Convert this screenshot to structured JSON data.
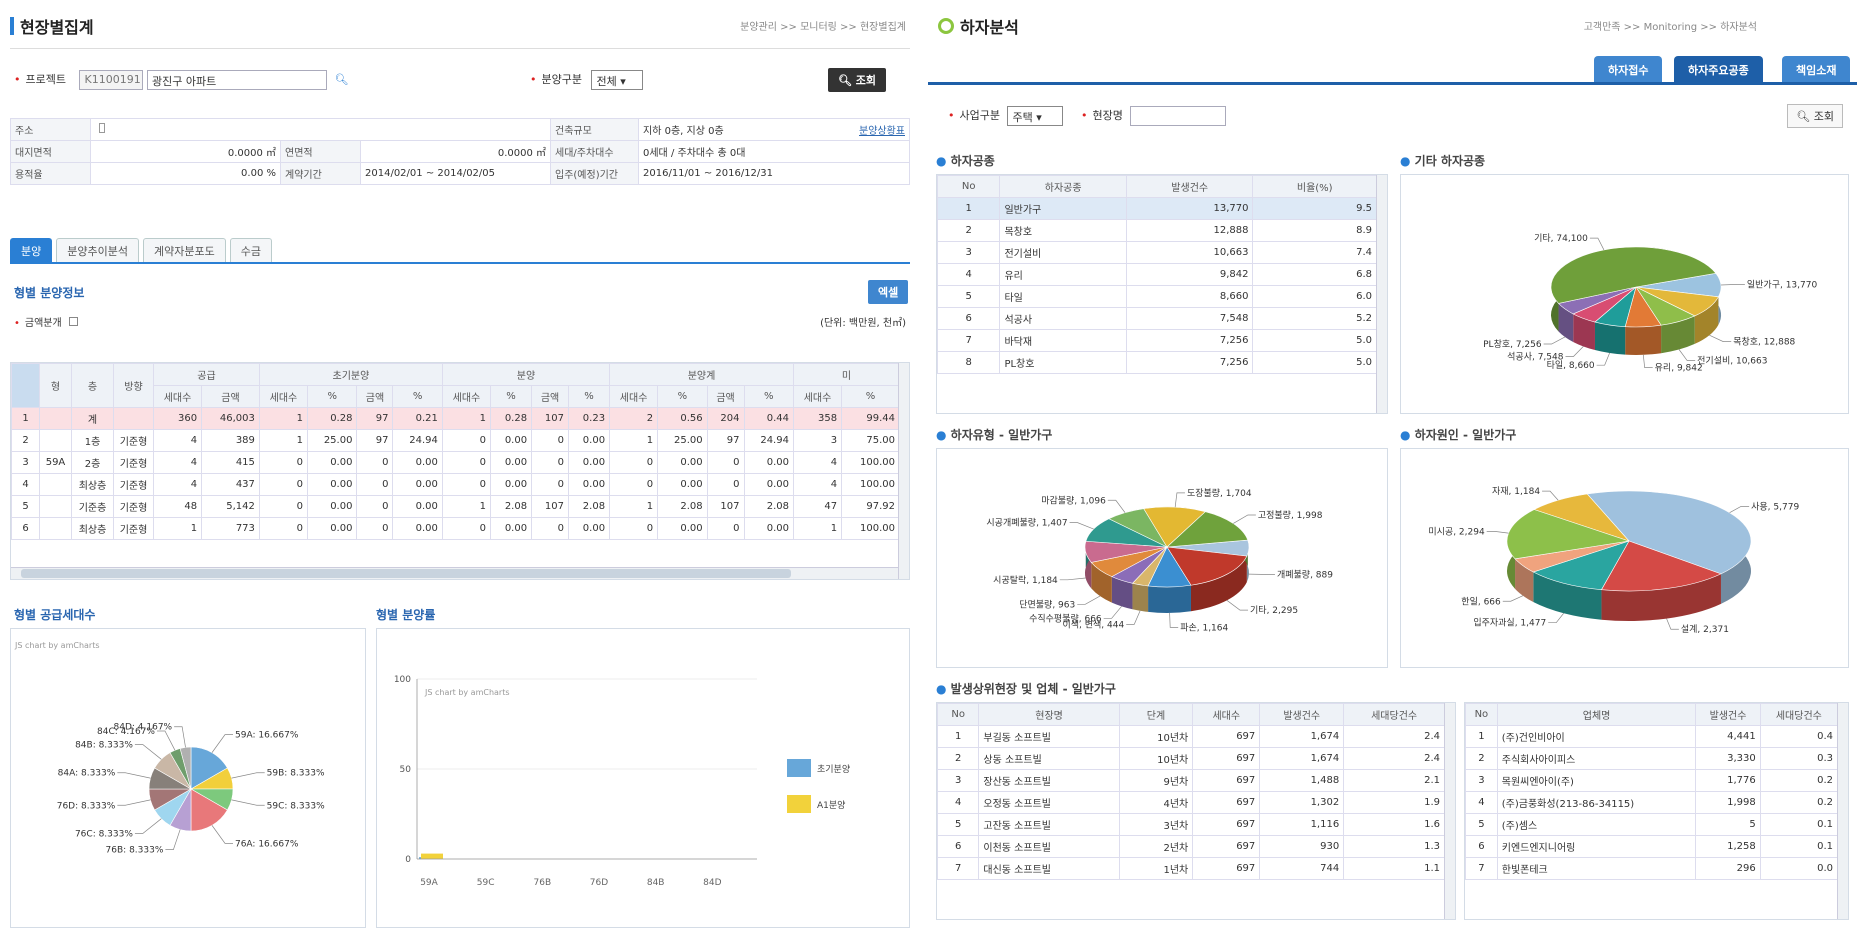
{
  "left": {
    "title": "현장별집계",
    "breadcrumb": "분양관리 >> 모니터링 >> 현장별집계",
    "search": {
      "project_label": "프로젝트",
      "project_code": "K1100191",
      "project_name": "광진구 아파트",
      "type_label": "분양구분",
      "type_value": "전체",
      "search_btn": "조회"
    },
    "info": {
      "addr_label": "주소",
      "addr_value": "",
      "scale_label": "건축규모",
      "scale_value": "지하 0층, 지상 0층",
      "scale_link": "분양상황표",
      "land_label": "대지면적",
      "land_value": "0.0000 ㎡",
      "floor_label": "연면적",
      "floor_value": "0.0000 ㎡",
      "units_label": "세대/주차대수",
      "units_value": "0세대 / 주차대수 총 0대",
      "ratio_label": "용적율",
      "ratio_value": "0.00 %",
      "contract_label": "계약기간",
      "contract_value": "2014/02/01 ~ 2014/02/05",
      "move_label": "입주(예정)기간",
      "move_value": "2016/11/01 ~ 2016/12/31"
    },
    "tabs": [
      "분양",
      "분양추이분석",
      "계약자분포도",
      "수금"
    ],
    "sect_title": "형별 분양정보",
    "excel_btn": "엑셀",
    "amount_sep": "금액분개",
    "unit": "(단위: 백만원, 천㎡)",
    "grid_groups": [
      "공급",
      "초기분양",
      "분양",
      "분양계",
      "미"
    ],
    "grid_head": [
      "형",
      "층",
      "방향",
      "세대수",
      "금액",
      "세대수",
      "%",
      "금액",
      "%",
      "세대수",
      "%",
      "금액",
      "%",
      "세대수",
      "%",
      "금액",
      "%",
      "세대수",
      "%"
    ],
    "grid_rows": [
      [
        "1",
        "",
        "계",
        "",
        "360",
        "46,003",
        "1",
        "0.28",
        "97",
        "0.21",
        "1",
        "0.28",
        "107",
        "0.23",
        "2",
        "0.56",
        "204",
        "0.44",
        "358",
        "99.44"
      ],
      [
        "2",
        "",
        "1층",
        "기준형",
        "4",
        "389",
        "1",
        "25.00",
        "97",
        "24.94",
        "0",
        "0.00",
        "0",
        "0.00",
        "1",
        "25.00",
        "97",
        "24.94",
        "3",
        "75.00"
      ],
      [
        "3",
        "59A",
        "2층",
        "기준형",
        "4",
        "415",
        "0",
        "0.00",
        "0",
        "0.00",
        "0",
        "0.00",
        "0",
        "0.00",
        "0",
        "0.00",
        "0",
        "0.00",
        "4",
        "100.00"
      ],
      [
        "4",
        "",
        "최상층",
        "기준형",
        "4",
        "437",
        "0",
        "0.00",
        "0",
        "0.00",
        "0",
        "0.00",
        "0",
        "0.00",
        "0",
        "0.00",
        "0",
        "0.00",
        "4",
        "100.00"
      ],
      [
        "5",
        "",
        "기준층",
        "기준형",
        "48",
        "5,142",
        "0",
        "0.00",
        "0",
        "0.00",
        "1",
        "2.08",
        "107",
        "2.08",
        "1",
        "2.08",
        "107",
        "2.08",
        "47",
        "97.92"
      ],
      [
        "6",
        "",
        "최상층",
        "기준형",
        "1",
        "773",
        "0",
        "0.00",
        "0",
        "0.00",
        "0",
        "0.00",
        "0",
        "0.00",
        "0",
        "0.00",
        "0",
        "0.00",
        "1",
        "100.00"
      ]
    ],
    "chart1_title": "형별 공급세대수",
    "chart1_credit": "JS chart by amCharts",
    "chart2_title": "형별 분양률",
    "chart2_credit": "JS chart by amCharts"
  },
  "right": {
    "title": "하자분석",
    "breadcrumb": "고객만족 >> Monitoring >> 하자분석",
    "tabs": [
      "하자접수",
      "하자주요공종",
      "책임소재"
    ],
    "filter": {
      "biz_label": "사업구분",
      "biz_value": "주택",
      "site_label": "현장명",
      "site_value": "",
      "search_btn": "조회"
    },
    "sect1": "하자공종",
    "sect2": "기타 하자공종",
    "sect3": "하자유형 - 일반가구",
    "sect4": "하자원인 - 일반가구",
    "sect5": "발생상위현장 및 업체 - 일반가구",
    "defect_head": [
      "No",
      "하자공종",
      "발생건수",
      "비율(%)"
    ],
    "defect_rows": [
      [
        "1",
        "일반가구",
        "13,770",
        "9.5"
      ],
      [
        "2",
        "목창호",
        "12,888",
        "8.9"
      ],
      [
        "3",
        "전기설비",
        "10,663",
        "7.4"
      ],
      [
        "4",
        "유리",
        "9,842",
        "6.8"
      ],
      [
        "5",
        "타일",
        "8,660",
        "6.0"
      ],
      [
        "6",
        "석공사",
        "7,548",
        "5.2"
      ],
      [
        "7",
        "바닥재",
        "7,256",
        "5.0"
      ],
      [
        "8",
        "PL창호",
        "7,256",
        "5.0"
      ]
    ],
    "site_head": [
      "No",
      "현장명",
      "단계",
      "세대수",
      "발생건수",
      "세대당건수"
    ],
    "site_rows": [
      [
        "1",
        "부길동 소프트빌",
        "10년차",
        "697",
        "1,674",
        "2.4"
      ],
      [
        "2",
        "상동 소프트빌",
        "10년차",
        "697",
        "1,674",
        "2.4"
      ],
      [
        "3",
        "장산동 소프트빌",
        "9년차",
        "697",
        "1,488",
        "2.1"
      ],
      [
        "4",
        "오정동 소프트빌",
        "4년차",
        "697",
        "1,302",
        "1.9"
      ],
      [
        "5",
        "고잔동 소프트빌",
        "3년차",
        "697",
        "1,116",
        "1.6"
      ],
      [
        "6",
        "이천동 소프트빌",
        "2년차",
        "697",
        "930",
        "1.3"
      ],
      [
        "7",
        "대신동 소프트빌",
        "1년차",
        "697",
        "744",
        "1.1"
      ]
    ],
    "vendor_head": [
      "No",
      "업체명",
      "발생건수",
      "세대당건수"
    ],
    "vendor_rows": [
      [
        "1",
        "(주)건인비아이",
        "4,441",
        "0.4"
      ],
      [
        "2",
        "주식회사아이피스",
        "3,330",
        "0.3"
      ],
      [
        "3",
        "목원씨엔아이(주)",
        "1,776",
        "0.2"
      ],
      [
        "4",
        "(주)금풍화성(213-86-34115)",
        "1,998",
        "0.2"
      ],
      [
        "5",
        "(주)셈스",
        "5",
        "0.1"
      ],
      [
        "6",
        "키엔드엔지니어링",
        "1,258",
        "0.1"
      ],
      [
        "7",
        "한빛폰테크",
        "296",
        "0.0"
      ]
    ]
  },
  "chart_data": [
    {
      "type": "pie",
      "title": "형별 공급세대수",
      "categories": [
        "59A",
        "59B",
        "59C",
        "76A",
        "76B",
        "76C",
        "76D",
        "84A",
        "84B",
        "84C",
        "84D"
      ],
      "values": [
        16.667,
        8.333,
        8.333,
        16.667,
        8.333,
        8.333,
        8.333,
        8.333,
        8.333,
        4.167,
        4.167
      ],
      "labels": [
        "59A: 16.667%",
        "59B: 8.333%",
        "59C: 8.333%",
        "76A: 16.667%",
        "76B: 8.333%",
        "76C: 8.333%",
        "76D: 8.333%",
        "84A: 8.333%",
        "84B: 8.333%",
        "84C: 4.167%",
        "84D: 4.167%"
      ],
      "colors": [
        "#67a7d9",
        "#f2cf3b",
        "#7dc97d",
        "#e8787a",
        "#b7a0d3",
        "#9fd6ef",
        "#a37676",
        "#87807a",
        "#c9b7a6",
        "#6f9e6c",
        "#b0b0b0"
      ]
    },
    {
      "type": "bar",
      "title": "형별 분양률",
      "categories": [
        "59A",
        "59C",
        "76B",
        "76D",
        "84B",
        "84D"
      ],
      "series": [
        {
          "name": "초기분양",
          "values": [
            1,
            0,
            0,
            0,
            0,
            0
          ],
          "color": "#67a7d9"
        },
        {
          "name": "A1분양",
          "values": [
            3,
            0,
            0,
            0,
            0,
            0
          ],
          "color": "#f2d23b"
        }
      ],
      "y_ticks": [
        "0",
        "50",
        "100"
      ],
      "ylim": [
        0,
        100
      ]
    },
    {
      "type": "pie",
      "title": "기타 하자공종",
      "categories": [
        "일반가구",
        "목창호",
        "전기설비",
        "유리",
        "타일",
        "석공사",
        "PL창호",
        "기타"
      ],
      "values": [
        13770,
        12888,
        10663,
        9842,
        8660,
        7548,
        7256,
        74100
      ],
      "labels": [
        "일반가구, 13,770",
        "목창호, 12,888",
        "전기설비, 10,663",
        "유리, 9,842",
        "타일, 8,660",
        "석공사, 7,548",
        "PL창호, 7,256",
        "기타, 74,100"
      ],
      "colors": [
        "#9cc3e0",
        "#e3b83a",
        "#8fbe4a",
        "#e27a36",
        "#1f9d9a",
        "#d84d72",
        "#8c6fb5",
        "#6f9f3a"
      ]
    },
    {
      "type": "pie",
      "title": "하자유형 - 일반가구",
      "categories": [
        "개폐불량",
        "기타",
        "파손",
        "이색, 변색",
        "수직수평불량",
        "단면불량",
        "시공탈락",
        "시공개폐불량",
        "마감불량",
        "도장불량",
        "고정불량"
      ],
      "values": [
        889,
        2295,
        1164,
        444,
        666,
        963,
        1184,
        1407,
        1096,
        1704,
        1998
      ],
      "labels": [
        "개폐불량, 889",
        "기타, 2,295",
        "파손, 1,164",
        "이색, 변색, 444",
        "수직수평불량, 666",
        "단면불량, 963",
        "시공탈락, 1,184",
        "시공개폐불량, 1,407",
        "마감불량, 1,096",
        "도장불량, 1,704",
        "고정불량, 1,998"
      ],
      "colors": [
        "#a9c5de",
        "#c0392b",
        "#3b8fd1",
        "#d9b66b",
        "#8b6db8",
        "#e08a3c",
        "#c96b8f",
        "#2f9a8f",
        "#7bb662",
        "#e3b832",
        "#6fa23c"
      ]
    },
    {
      "type": "pie",
      "title": "하자원인 - 일반가구",
      "categories": [
        "사용",
        "설계",
        "입주자과실",
        "한일",
        "미시공",
        "자재"
      ],
      "values": [
        5779,
        2371,
        1477,
        666,
        2294,
        1184
      ],
      "labels": [
        "사용, 5,779",
        "설계, 2,371",
        "입주자과실, 1,477",
        "한일, 666",
        "미시공, 2,294",
        "자재, 1,184"
      ],
      "colors": [
        "#9fc1de",
        "#d44a46",
        "#2aa5a0",
        "#f0a37e",
        "#8dc04a",
        "#e7b83c"
      ]
    }
  ]
}
